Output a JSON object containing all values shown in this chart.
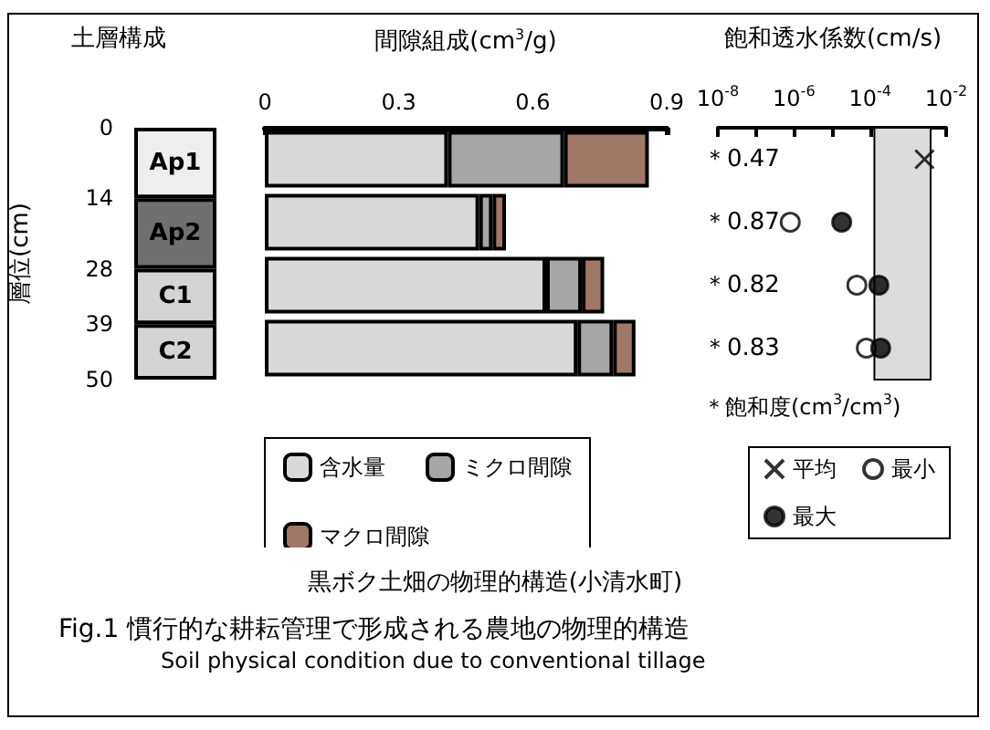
{
  "chart_data": [
    {
      "type": "bar",
      "stacked": true,
      "title": "土層構成",
      "ylabel": "層位(cm)",
      "categories": [
        null
      ],
      "series": [
        {
          "name": "Ap1",
          "color": "#eeeeee",
          "values": [
            14
          ]
        },
        {
          "name": "Ap2",
          "color": "#707070",
          "values": [
            14
          ]
        },
        {
          "name": "C1",
          "color": "#d4d4d4",
          "values": [
            11
          ]
        },
        {
          "name": "C2",
          "color": "#d4d4d4",
          "values": [
            11
          ]
        }
      ],
      "ylim": [
        50,
        0
      ],
      "yticks": [
        0,
        14,
        28,
        39,
        50
      ],
      "grid": false,
      "legend": false
    },
    {
      "type": "bar",
      "orientation": "horizontal",
      "stacked": true,
      "title": "間隙組成(cm$^{3}$/g)",
      "categories": [
        null,
        null,
        null,
        null
      ],
      "series": [
        {
          "name": "含水量",
          "color": "#d9d9d9",
          "values": [
            0.41,
            0.48,
            0.63,
            0.7
          ]
        },
        {
          "name": "ミクロ間隙",
          "color": "#a6a6a6",
          "values": [
            0.26,
            0.03,
            0.08,
            0.08
          ]
        },
        {
          "name": "マクロ間隙",
          "color": "#a07868",
          "values": [
            0.19,
            0.03,
            0.05,
            0.05
          ]
        }
      ],
      "xlim": [
        0,
        0.9
      ],
      "xticks": [
        0,
        {
          "value": 0.15,
          "label": null
        },
        0.3,
        {
          "value": 0.45,
          "label": null
        },
        0.6,
        {
          "value": 0.75,
          "label": null
        },
        0.9
      ],
      "grid": false,
      "legend": "bottom"
    },
    {
      "type": "scatter",
      "orientation": "horizontal",
      "title": "飽和透水係数(cm/s)",
      "categories": [
        null,
        null,
        null,
        null
      ],
      "series": [
        {
          "name": "平均",
          "color": "#000000",
          "marker": "cross",
          "values": [
            0.0027,
            null,
            null,
            null
          ]
        },
        {
          "name": "最小",
          "color": "#ffffff",
          "marker": "circle",
          "values": [
            null,
            8e-07,
            4.5e-05,
            8e-05
          ]
        },
        {
          "name": "最大",
          "color": "#000000",
          "marker": "circle",
          "values": [
            null,
            1.8e-05,
            0.00017,
            0.00019
          ]
        }
      ],
      "log": "x",
      "xlim": [
        1e-08,
        0.01
      ],
      "xticks": [
        {
          "value": 1e-08,
          "label": "10$^{-8}$"
        },
        {
          "value": 1e-07,
          "label": null
        },
        {
          "value": 1e-06,
          "label": "10$^{-6}$"
        },
        {
          "value": 1e-05,
          "label": null
        },
        {
          "value": 0.0001,
          "label": "10$^{-4}$"
        },
        {
          "value": 0.001,
          "label": null
        },
        {
          "value": 0.01,
          "label": "10$^{-2}$"
        }
      ],
      "bands": [
        {
          "axis": "x",
          "from": 0.00013,
          "to": 0.0039,
          "color": "#dcdcdc"
        }
      ],
      "annotations": [
        "＊0.47",
        "＊0.87",
        "＊0.82",
        "＊0.83",
        "＊飽和度(cm$^{3}$/cm$^{3}$)"
      ],
      "grid": false,
      "legend": "bottom"
    },
    {
      "type": "other",
      "title": "黒ボク土畑の物理的構造(小清水町)",
      "annotations": [
        "Fig.1 慣行的な耕耘管理で形成される農地の物理的構造",
        "Soil physical condition due to conventional tillage"
      ]
    }
  ]
}
